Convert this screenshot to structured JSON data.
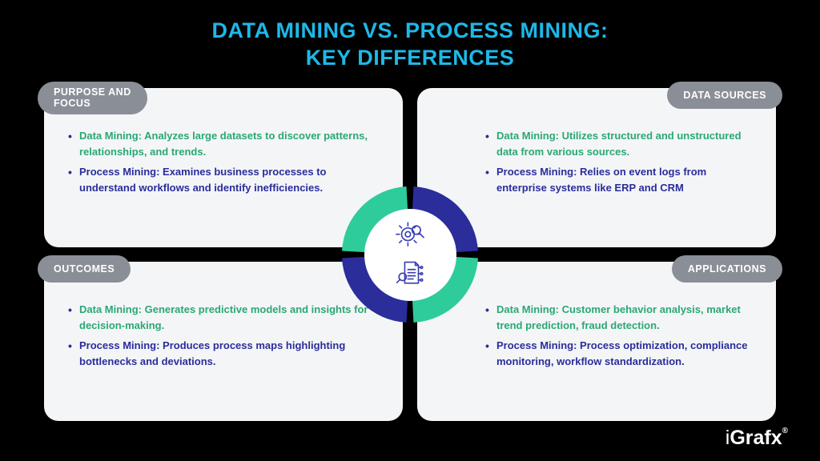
{
  "title_line1": "DATA MINING VS. PROCESS MINING:",
  "title_line2": "KEY DIFFERENCES",
  "colors": {
    "background": "#000000",
    "title": "#1eb8e8",
    "card_bg": "#f4f5f7",
    "badge_bg": "#8a8e96",
    "dm_text": "#2aa876",
    "pm_text": "#2a2d9a",
    "ring_teal": "#2ecc9b",
    "ring_blue": "#2a2d9a",
    "icon_stroke": "#3b3fb3"
  },
  "ring": {
    "outer_radius": 92,
    "inner_radius": 58,
    "gap_deg": 6
  },
  "cards": {
    "tl": {
      "badge_line1": "PURPOSE AND",
      "badge_line2": "FOCUS",
      "dm": "Data Mining: Analyzes large datasets to discover patterns, relationships, and trends.",
      "pm": "Process Mining: Examines business processes to understand workflows and identify inefficiencies."
    },
    "tr": {
      "badge": "DATA SOURCES",
      "dm": "Data Mining: Utilizes structured and unstructured data from various sources.",
      "pm": "Process Mining: Relies on event logs from enterprise systems like ERP and CRM"
    },
    "bl": {
      "badge": "OUTCOMES",
      "dm": "Data Mining: Generates predictive models and insights for decision-making.",
      "pm": "Process Mining: Produces process maps highlighting bottlenecks and deviations."
    },
    "br": {
      "badge": "APPLICATIONS",
      "dm": "Data Mining: Customer behavior analysis, market trend prediction, fraud detection.",
      "pm": "Process Mining: Process optimization, compliance monitoring, workflow standardization."
    }
  },
  "logo": "iGrafx"
}
